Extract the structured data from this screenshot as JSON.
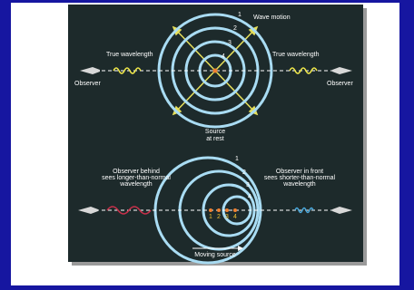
{
  "top": {
    "wave_motion": "Wave motion",
    "wave_numbers": [
      "1",
      "2",
      "3",
      "4"
    ],
    "true_wavelength_left": "True wavelength",
    "true_wavelength_right": "True wavelength",
    "observer_left": "Observer",
    "observer_right": "Observer",
    "source": [
      "Source",
      "at rest"
    ]
  },
  "bottom": {
    "observer_behind": [
      "Observer behind",
      "sees longer-than-normal",
      "wavelength"
    ],
    "observer_front": [
      "Observer in front",
      "sees shorter-than-normal",
      "wavelength"
    ],
    "wave_numbers": [
      "1",
      "2",
      "3",
      "4"
    ],
    "source_positions": [
      "1",
      "2",
      "3",
      "4"
    ],
    "moving_source": "Moving source"
  }
}
